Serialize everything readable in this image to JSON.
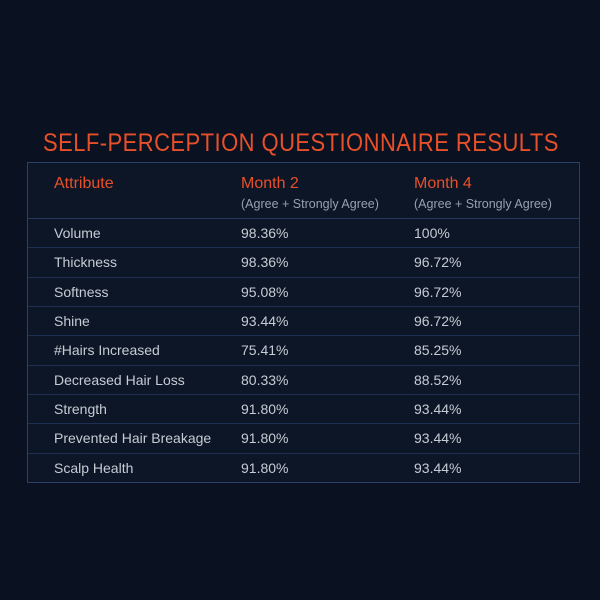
{
  "page_title": "SELF-PERCEPTION QUESTIONNAIRE RESULTS",
  "table": {
    "header": {
      "attribute": "Attribute",
      "month2": "Month 2",
      "month2_sub": "(Agree + Strongly Agree)",
      "month4": "Month 4",
      "month4_sub": "(Agree + Strongly Agree)"
    },
    "rows": [
      {
        "attribute": "Volume",
        "month2": "98.36%",
        "month4": "100%"
      },
      {
        "attribute": "Thickness",
        "month2": "98.36%",
        "month4": "96.72%"
      },
      {
        "attribute": "Softness",
        "month2": "95.08%",
        "month4": "96.72%"
      },
      {
        "attribute": "Shine",
        "month2": "93.44%",
        "month4": "96.72%"
      },
      {
        "attribute": "#Hairs Increased",
        "month2": "75.41%",
        "month4": "85.25%"
      },
      {
        "attribute": "Decreased Hair Loss",
        "month2": "80.33%",
        "month4": "88.52%"
      },
      {
        "attribute": "Strength",
        "month2": "91.80%",
        "month4": "93.44%"
      },
      {
        "attribute": "Prevented Hair Breakage",
        "month2": "91.80%",
        "month4": "93.44%"
      },
      {
        "attribute": "Scalp Health",
        "month2": "91.80%",
        "month4": "93.44%"
      }
    ]
  },
  "chart_data": {
    "type": "table",
    "title": "SELF-PERCEPTION QUESTIONNAIRE RESULTS",
    "columns": [
      "Attribute",
      "Month 2 (Agree + Strongly Agree)",
      "Month 4 (Agree + Strongly Agree)"
    ],
    "categories": [
      "Volume",
      "Thickness",
      "Softness",
      "Shine",
      "#Hairs Increased",
      "Decreased Hair Loss",
      "Strength",
      "Prevented Hair Breakage",
      "Scalp Health"
    ],
    "series": [
      {
        "name": "Month 2",
        "values": [
          98.36,
          98.36,
          95.08,
          93.44,
          75.41,
          80.33,
          91.8,
          91.8,
          91.8
        ]
      },
      {
        "name": "Month 4",
        "values": [
          100,
          96.72,
          96.72,
          96.72,
          85.25,
          88.52,
          93.44,
          93.44,
          93.44
        ]
      }
    ],
    "value_unit": "%"
  },
  "colors": {
    "accent_orange": "#e8502a",
    "page_background": "#0a1120",
    "table_background": "#0d1626",
    "table_border": "#2a4066",
    "row_divider": "#1e2f50",
    "body_text": "#c6ccd5",
    "subheader_text": "#97a0af"
  }
}
